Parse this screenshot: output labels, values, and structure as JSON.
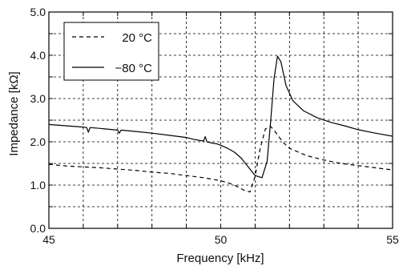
{
  "chart_data": {
    "type": "line",
    "xlabel": "Frequency [kHz]",
    "ylabel": "Impedance [kΩ]",
    "xlim": [
      45,
      55
    ],
    "ylim": [
      0,
      5
    ],
    "x_ticks": [
      45,
      50,
      55
    ],
    "x_tick_labels": [
      "45",
      "50",
      "55"
    ],
    "y_ticks": [
      0,
      1,
      2,
      3,
      4,
      5
    ],
    "y_tick_labels": [
      "0.0",
      "1.0",
      "2.0",
      "3.0",
      "4.0",
      "5.0"
    ],
    "x_grid_step": 1,
    "y_grid_step": 0.5,
    "grid": true,
    "legend_position": "top-left",
    "series": [
      {
        "name": "20 °C",
        "line_style": "dashed",
        "color": "#000000",
        "x": [
          45.0,
          45.5,
          46.0,
          46.5,
          47.0,
          47.5,
          48.0,
          48.5,
          49.0,
          49.5,
          50.0,
          50.3,
          50.5,
          50.7,
          50.85,
          51.0,
          51.15,
          51.3,
          51.45,
          51.6,
          51.8,
          52.0,
          52.5,
          53.0,
          53.5,
          54.0,
          54.5,
          55.0
        ],
        "y": [
          1.48,
          1.44,
          1.42,
          1.4,
          1.37,
          1.34,
          1.3,
          1.27,
          1.22,
          1.17,
          1.1,
          1.03,
          0.96,
          0.87,
          0.84,
          1.2,
          1.85,
          2.3,
          2.36,
          2.22,
          2.0,
          1.85,
          1.68,
          1.58,
          1.5,
          1.45,
          1.4,
          1.35
        ]
      },
      {
        "name": "−80 °C",
        "line_style": "solid",
        "color": "#000000",
        "x": [
          45.0,
          45.5,
          46.0,
          46.1,
          46.15,
          46.2,
          46.5,
          47.0,
          47.05,
          47.1,
          47.5,
          48.0,
          48.5,
          49.0,
          49.2,
          49.4,
          49.5,
          49.55,
          49.6,
          49.7,
          49.9,
          50.0,
          50.2,
          50.4,
          50.6,
          50.8,
          51.0,
          51.2,
          51.35,
          51.45,
          51.55,
          51.65,
          51.75,
          51.9,
          52.1,
          52.4,
          52.8,
          53.2,
          53.6,
          54.0,
          54.5,
          55.0
        ],
        "y": [
          2.4,
          2.37,
          2.34,
          2.33,
          2.22,
          2.33,
          2.31,
          2.27,
          2.2,
          2.27,
          2.24,
          2.2,
          2.15,
          2.1,
          2.06,
          2.03,
          2.02,
          2.12,
          2.0,
          1.98,
          1.95,
          1.92,
          1.85,
          1.76,
          1.62,
          1.42,
          1.22,
          1.17,
          1.55,
          2.45,
          3.45,
          3.98,
          3.85,
          3.3,
          2.95,
          2.72,
          2.56,
          2.45,
          2.37,
          2.28,
          2.2,
          2.13
        ]
      }
    ]
  }
}
